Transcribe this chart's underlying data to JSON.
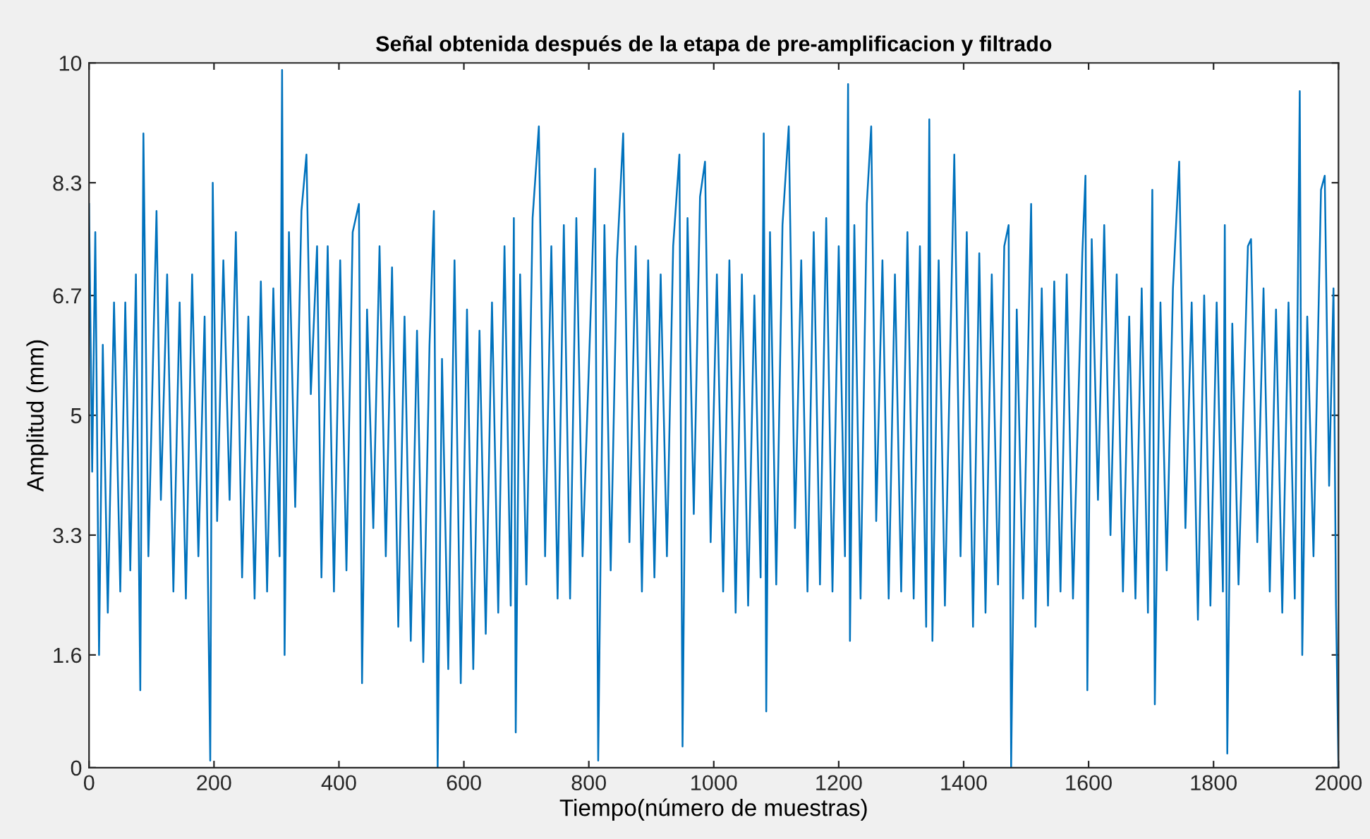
{
  "chart_data": {
    "type": "line",
    "title": "Señal obtenida después de la etapa de pre-amplificacion y filtrado",
    "xlabel": "Tiempo(número de muestras)",
    "ylabel": "Amplitud (mm)",
    "xlim": [
      0,
      2000
    ],
    "xticks": [
      0,
      200,
      400,
      600,
      800,
      1000,
      1200,
      1400,
      1600,
      1800,
      2000
    ],
    "ylim": [
      0,
      10
    ],
    "yticks": [
      0,
      1.6,
      3.3,
      5,
      6.7,
      8.3,
      10
    ],
    "grid": false,
    "line_style": "solid",
    "marker": "none",
    "series": [
      {
        "color": "#0072bd",
        "x": [
          0,
          5,
          10,
          16,
          22,
          30,
          40,
          50,
          58,
          66,
          75,
          82,
          87,
          95,
          108,
          115,
          125,
          135,
          145,
          155,
          165,
          175,
          185,
          194,
          198,
          205,
          215,
          225,
          235,
          245,
          255,
          265,
          275,
          285,
          295,
          305,
          309,
          313,
          320,
          330,
          340,
          348,
          355,
          365,
          372,
          382,
          392,
          402,
          412,
          422,
          432,
          437,
          445,
          455,
          465,
          475,
          485,
          495,
          505,
          515,
          525,
          535,
          545,
          552,
          558,
          565,
          575,
          585,
          595,
          605,
          615,
          625,
          635,
          645,
          655,
          665,
          675,
          680,
          683,
          690,
          700,
          710,
          720,
          730,
          740,
          750,
          760,
          770,
          780,
          790,
          805,
          810,
          815,
          825,
          835,
          845,
          855,
          865,
          875,
          885,
          895,
          905,
          915,
          925,
          935,
          945,
          950,
          958,
          968,
          978,
          986,
          995,
          1005,
          1015,
          1025,
          1035,
          1045,
          1055,
          1065,
          1075,
          1080,
          1084,
          1090,
          1100,
          1110,
          1120,
          1130,
          1140,
          1150,
          1160,
          1170,
          1180,
          1190,
          1200,
          1210,
          1215,
          1218,
          1225,
          1235,
          1245,
          1252,
          1260,
          1270,
          1280,
          1290,
          1300,
          1310,
          1320,
          1330,
          1340,
          1345,
          1350,
          1360,
          1370,
          1385,
          1395,
          1405,
          1415,
          1425,
          1435,
          1445,
          1455,
          1465,
          1472,
          1476,
          1485,
          1495,
          1508,
          1515,
          1525,
          1535,
          1545,
          1555,
          1565,
          1575,
          1590,
          1595,
          1598,
          1605,
          1615,
          1625,
          1635,
          1645,
          1655,
          1665,
          1675,
          1685,
          1695,
          1702,
          1706,
          1715,
          1725,
          1735,
          1745,
          1755,
          1765,
          1775,
          1785,
          1795,
          1805,
          1815,
          1818,
          1822,
          1830,
          1840,
          1855,
          1860,
          1870,
          1880,
          1890,
          1900,
          1910,
          1920,
          1930,
          1938,
          1942,
          1950,
          1960,
          1972,
          1978,
          1985,
          1992,
          1996,
          2000
        ],
        "values": [
          8.0,
          4.2,
          7.6,
          1.6,
          6.0,
          2.2,
          6.6,
          2.5,
          6.6,
          2.8,
          7.0,
          1.1,
          9.0,
          3.0,
          7.9,
          3.8,
          7.0,
          2.5,
          6.6,
          2.4,
          7.0,
          3.0,
          6.4,
          0.1,
          8.3,
          3.5,
          7.2,
          3.8,
          7.6,
          2.7,
          6.4,
          2.4,
          6.9,
          2.5,
          6.8,
          3.0,
          9.9,
          1.6,
          7.6,
          3.7,
          7.9,
          8.7,
          5.3,
          7.4,
          2.7,
          7.4,
          2.5,
          7.2,
          2.8,
          7.6,
          8.0,
          1.2,
          6.5,
          3.4,
          7.4,
          3.0,
          7.1,
          2.0,
          6.4,
          1.8,
          6.2,
          1.5,
          6.0,
          7.9,
          0.0,
          5.8,
          1.4,
          7.2,
          1.2,
          6.5,
          1.4,
          6.2,
          1.9,
          6.6,
          2.2,
          7.4,
          2.3,
          7.8,
          0.5,
          7.0,
          2.6,
          7.8,
          9.1,
          3.0,
          7.4,
          2.4,
          7.7,
          2.4,
          7.8,
          3.0,
          7.0,
          8.5,
          0.1,
          7.7,
          2.8,
          7.2,
          9.0,
          3.2,
          7.4,
          2.5,
          7.2,
          2.7,
          7.0,
          3.0,
          7.4,
          8.7,
          0.3,
          7.8,
          3.6,
          8.1,
          8.6,
          3.2,
          7.0,
          2.5,
          7.2,
          2.2,
          7.0,
          2.3,
          6.7,
          2.7,
          9.0,
          0.8,
          7.6,
          2.6,
          7.7,
          9.1,
          3.4,
          7.2,
          2.5,
          7.6,
          2.6,
          7.8,
          2.5,
          7.4,
          3.0,
          9.7,
          1.8,
          7.7,
          2.4,
          8.0,
          9.1,
          3.5,
          7.2,
          2.4,
          7.0,
          2.5,
          7.6,
          2.4,
          7.4,
          2.0,
          9.2,
          1.8,
          7.2,
          2.3,
          8.7,
          3.0,
          7.6,
          2.0,
          7.3,
          2.2,
          7.0,
          2.6,
          7.4,
          7.7,
          0.0,
          6.5,
          2.4,
          8.0,
          2.0,
          6.8,
          2.3,
          6.9,
          2.5,
          7.0,
          2.4,
          7.3,
          8.4,
          1.1,
          7.5,
          3.8,
          7.7,
          3.3,
          7.0,
          2.5,
          6.4,
          2.4,
          6.8,
          2.2,
          8.2,
          0.9,
          6.6,
          2.8,
          6.8,
          8.6,
          3.4,
          6.6,
          2.1,
          6.7,
          2.3,
          6.6,
          2.5,
          7.7,
          0.2,
          6.3,
          2.6,
          7.4,
          7.5,
          3.2,
          6.8,
          2.5,
          6.5,
          2.2,
          6.6,
          2.4,
          9.6,
          1.6,
          6.4,
          3.0,
          8.2,
          8.4,
          4.0,
          6.8,
          2.3,
          0.0
        ]
      }
    ]
  }
}
